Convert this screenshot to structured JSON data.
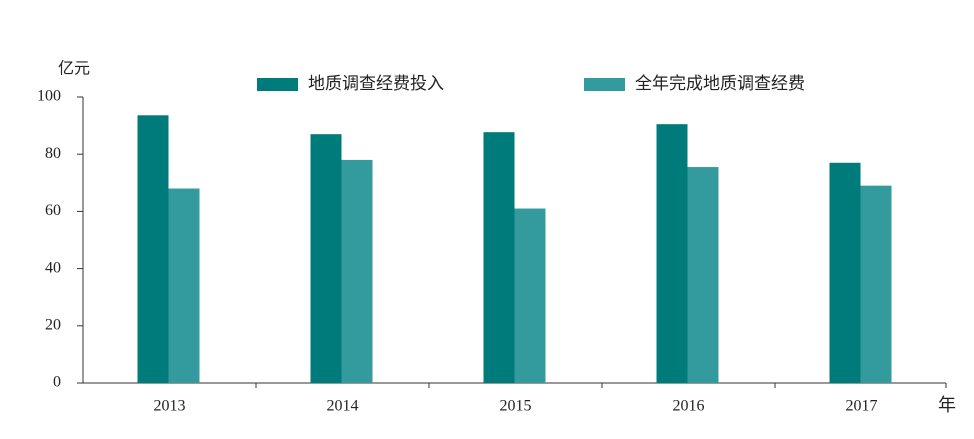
{
  "chart_data": {
    "type": "bar",
    "y_label": "亿元",
    "x_label": "年",
    "categories": [
      "2013",
      "2014",
      "2015",
      "2016",
      "2017"
    ],
    "series": [
      {
        "name": "地质调查经费投入",
        "color": "#007b7b",
        "values": [
          93.6,
          87,
          87.7,
          90.5,
          77
        ]
      },
      {
        "name": "全年完成地质调查经费",
        "color": "#339a9d",
        "values": [
          68,
          78,
          61,
          75.5,
          69
        ]
      }
    ],
    "ylim": [
      0,
      100
    ],
    "yticks": [
      0,
      20,
      40,
      60,
      80,
      100
    ],
    "grid": false,
    "legend": "top"
  }
}
